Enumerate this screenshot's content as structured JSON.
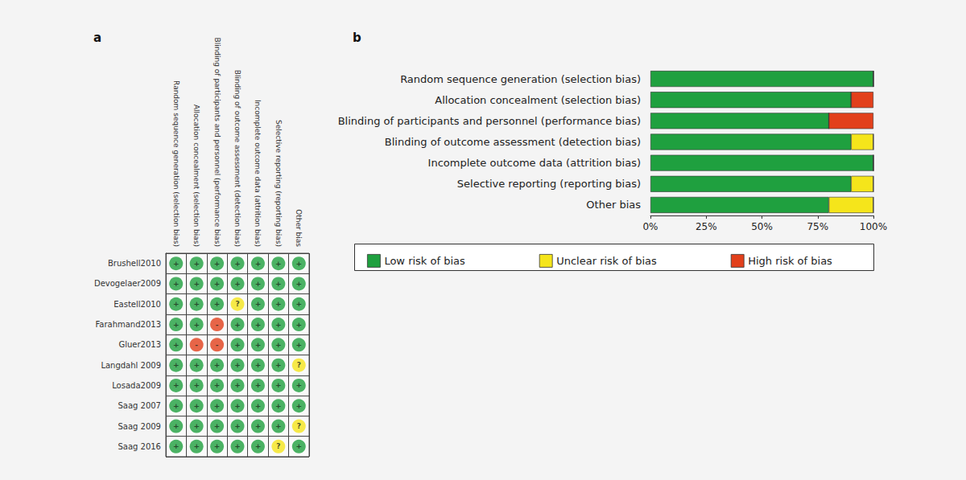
{
  "chart_data": [
    {
      "title": "a",
      "type": "matrix",
      "categories": [
        "Random sequence generation (selection bias)",
        "Allocation concealment (selection bias)",
        "Blinding of participants and personnel (performance bias)",
        "Blinding of outcome assessment (detection bias)",
        "Incomplete outcome data (attrition bias)",
        "Selective reporting (reporting bias)",
        "Other bias"
      ],
      "rows": [
        "Brushell2010",
        "Devogelaer2009",
        "Eastell2010",
        "Farahmand2013",
        "Gluer2013",
        "Langdahl 2009",
        "Losada2009",
        "Saag 2007",
        "Saag 2009",
        "Saag 2016"
      ],
      "cells": [
        [
          "+",
          "+",
          "+",
          "+",
          "+",
          "+",
          "+"
        ],
        [
          "+",
          "+",
          "+",
          "+",
          "+",
          "+",
          "+"
        ],
        [
          "+",
          "+",
          "+",
          "?",
          "+",
          "+",
          "+"
        ],
        [
          "+",
          "+",
          "-",
          "+",
          "+",
          "+",
          "+"
        ],
        [
          "+",
          "-",
          "-",
          "+",
          "+",
          "+",
          "+"
        ],
        [
          "+",
          "+",
          "+",
          "+",
          "+",
          "+",
          "?"
        ],
        [
          "+",
          "+",
          "+",
          "+",
          "+",
          "+",
          "+"
        ],
        [
          "+",
          "+",
          "+",
          "+",
          "+",
          "+",
          "+"
        ],
        [
          "+",
          "+",
          "+",
          "+",
          "+",
          "+",
          "?"
        ],
        [
          "+",
          "+",
          "+",
          "+",
          "+",
          "?",
          "+"
        ]
      ],
      "marks": [
        {
          "symbol": "+",
          "color": "#1fa03f"
        },
        {
          "symbol": "?",
          "color": "#f5e51b"
        },
        {
          "symbol": "-",
          "color": "#e2401b"
        }
      ]
    },
    {
      "title": "b",
      "type": "bar",
      "orientation": "horizontal",
      "stacked": true,
      "categories": [
        "Random sequence generation (selection bias)",
        "Allocation concealment (selection bias)",
        "Blinding of participants and personnel (performance bias)",
        "Blinding of outcome assessment (detection bias)",
        "Incomplete outcome data (attrition bias)",
        "Selective reporting (reporting bias)",
        "Other bias"
      ],
      "series": [
        {
          "name": "Low risk of bias",
          "color": "#1fa03f",
          "values": [
            100,
            90,
            80,
            90,
            100,
            90,
            80
          ]
        },
        {
          "name": "Unclear risk of bias",
          "color": "#f5e51b",
          "values": [
            0,
            0,
            0,
            10,
            0,
            10,
            20
          ]
        },
        {
          "name": "High risk of bias",
          "color": "#e2401b",
          "values": [
            0,
            10,
            20,
            0,
            0,
            0,
            0
          ]
        }
      ],
      "xlim": [
        0,
        100
      ],
      "xticks": [
        {
          "value": 0,
          "label": "0%"
        },
        {
          "value": 25,
          "label": "25%"
        },
        {
          "value": 50,
          "label": "50%"
        },
        {
          "value": 75,
          "label": "75%"
        },
        {
          "value": 100,
          "label": "100%"
        }
      ],
      "legend": "bottom"
    }
  ]
}
